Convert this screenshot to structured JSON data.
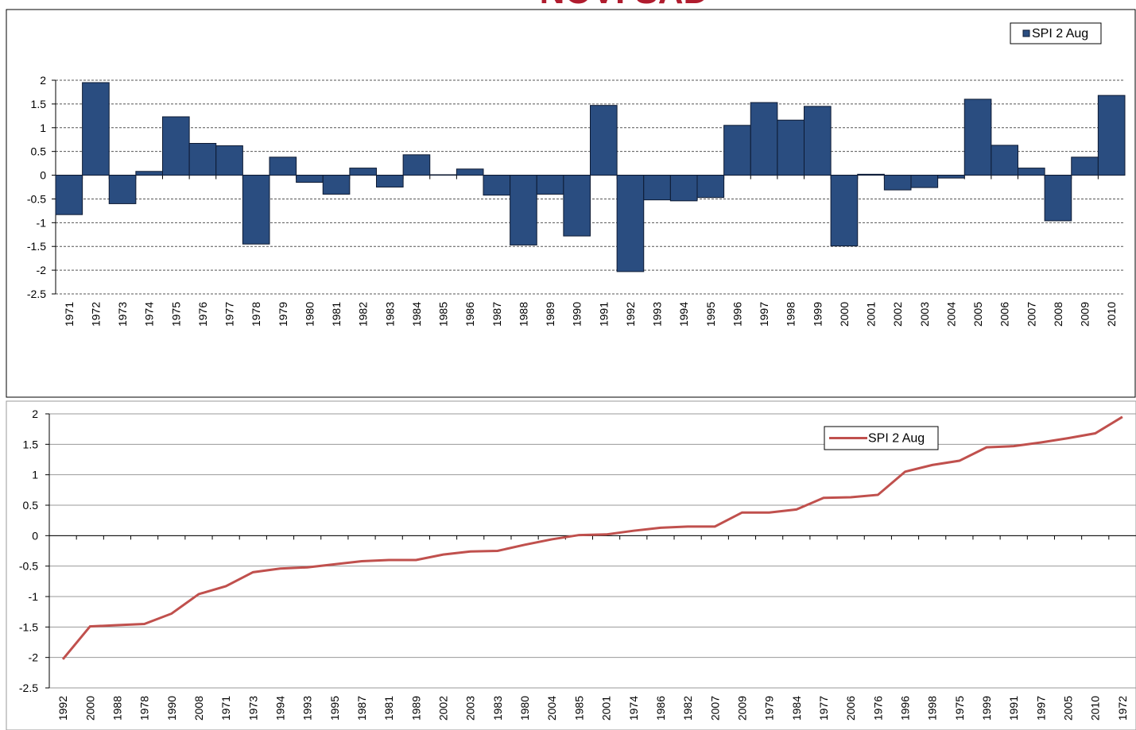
{
  "chart_data": [
    {
      "type": "bar",
      "title": "NOVI SAD",
      "categories": [
        "1971",
        "1972",
        "1973",
        "1974",
        "1975",
        "1976",
        "1977",
        "1978",
        "1979",
        "1980",
        "1981",
        "1982",
        "1983",
        "1984",
        "1985",
        "1986",
        "1987",
        "1988",
        "1989",
        "1990",
        "1991",
        "1992",
        "1993",
        "1994",
        "1995",
        "1996",
        "1997",
        "1998",
        "1999",
        "2000",
        "2001",
        "2002",
        "2003",
        "2004",
        "2005",
        "2006",
        "2007",
        "2008",
        "2009",
        "2010"
      ],
      "series": [
        {
          "name": "SPI 2 Aug",
          "color": "#2a4d80",
          "values": [
            -0.83,
            1.95,
            -0.6,
            0.08,
            1.23,
            0.67,
            0.62,
            -1.45,
            0.38,
            -0.15,
            -0.4,
            0.15,
            -0.25,
            0.43,
            0.01,
            0.13,
            -0.42,
            -1.47,
            -0.4,
            -1.28,
            1.47,
            -2.03,
            -0.52,
            -0.54,
            -0.47,
            1.05,
            1.53,
            1.16,
            1.45,
            -1.49,
            0.02,
            -0.31,
            -0.26,
            -0.06,
            1.6,
            0.63,
            0.15,
            -0.96,
            0.38,
            1.68
          ]
        }
      ],
      "ylim": [
        -2.5,
        2
      ],
      "yticks": [
        -2.5,
        -2,
        -1.5,
        -1,
        -0.5,
        0,
        0.5,
        1,
        1.5,
        2
      ],
      "grid": "dashed",
      "legend": "upper right"
    },
    {
      "type": "line",
      "categories": [
        "1992",
        "2000",
        "1988",
        "1978",
        "1990",
        "2008",
        "1971",
        "1973",
        "1994",
        "1993",
        "1995",
        "1987",
        "1981",
        "1989",
        "2002",
        "2003",
        "1983",
        "1980",
        "2004",
        "1985",
        "2001",
        "1974",
        "1986",
        "1982",
        "2007",
        "2009",
        "1979",
        "1984",
        "1977",
        "2006",
        "1976",
        "1996",
        "1998",
        "1975",
        "1999",
        "1991",
        "1997",
        "2005",
        "2010",
        "1972"
      ],
      "series": [
        {
          "name": "SPI 2 Aug",
          "color": "#c0504d",
          "values": [
            -2.03,
            -1.49,
            -1.47,
            -1.45,
            -1.28,
            -0.96,
            -0.83,
            -0.6,
            -0.54,
            -0.52,
            -0.47,
            -0.42,
            -0.4,
            -0.4,
            -0.31,
            -0.26,
            -0.25,
            -0.15,
            -0.06,
            0.01,
            0.02,
            0.08,
            0.13,
            0.15,
            0.15,
            0.38,
            0.38,
            0.43,
            0.62,
            0.63,
            0.67,
            1.05,
            1.16,
            1.23,
            1.45,
            1.47,
            1.53,
            1.6,
            1.68,
            1.95
          ]
        }
      ],
      "ylim": [
        -2.5,
        2
      ],
      "yticks": [
        -2.5,
        -2,
        -1.5,
        -1,
        -0.5,
        0,
        0.5,
        1,
        1.5,
        2
      ],
      "grid": "solid",
      "legend": "upper right"
    }
  ]
}
